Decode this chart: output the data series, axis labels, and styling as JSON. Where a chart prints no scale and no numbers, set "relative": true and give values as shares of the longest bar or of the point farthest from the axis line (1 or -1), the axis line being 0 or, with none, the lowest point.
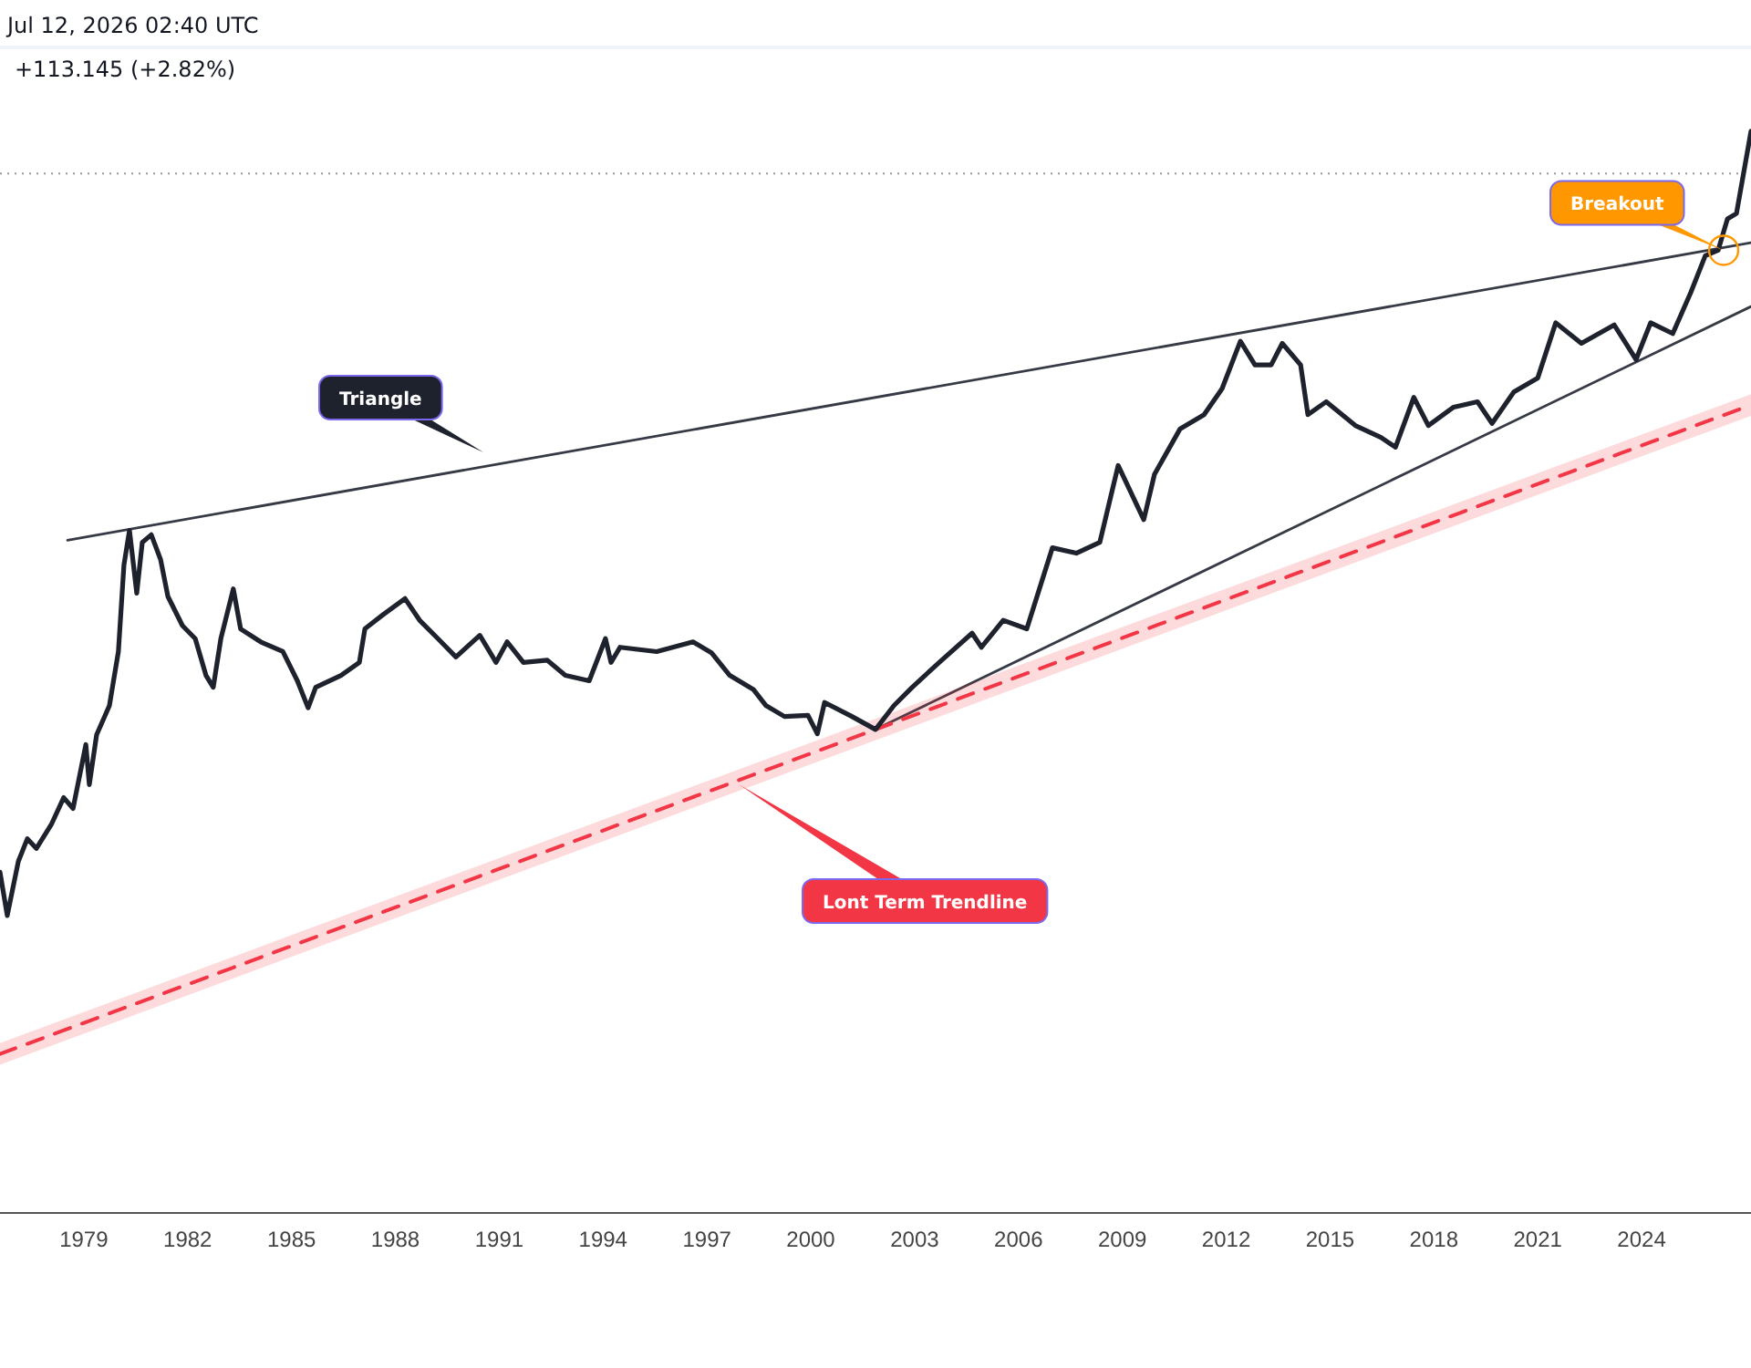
{
  "chart_data": {
    "type": "line",
    "title": "Jul 12, 2026 02:40 UTC",
    "subtitle": "+113.145 (+2.82%)",
    "relative": true,
    "xlim": [
      1976.58,
      2027.16
    ],
    "xticks": [
      1979,
      1982,
      1985,
      1988,
      1991,
      1994,
      1997,
      2000,
      2003,
      2006,
      2009,
      2012,
      2015,
      2018,
      2021,
      2024
    ],
    "grid": false,
    "marker": "none",
    "series": [
      {
        "color": "#1e222d",
        "line_style": "solid",
        "x": [
          1976.58,
          1976.79,
          1977.11,
          1977.37,
          1977.63,
          1978.06,
          1978.42,
          1978.69,
          1979.06,
          1979.16,
          1979.37,
          1979.74,
          1980.0,
          1980.16,
          1980.32,
          1980.53,
          1980.69,
          1980.95,
          1981.22,
          1981.43,
          1981.85,
          1982.22,
          1982.53,
          1982.74,
          1982.96,
          1983.32,
          1983.53,
          1984.11,
          1984.75,
          1985.17,
          1985.48,
          1985.7,
          1986.43,
          1986.96,
          1987.12,
          1987.64,
          1988.28,
          1988.7,
          1989.23,
          1989.75,
          1990.44,
          1990.91,
          1991.23,
          1991.7,
          1992.39,
          1992.91,
          1993.6,
          1994.07,
          1994.23,
          1994.49,
          1995.55,
          1996.6,
          1997.13,
          1997.66,
          1998.34,
          1998.71,
          1999.24,
          1999.92,
          2000.19,
          2000.4,
          2001.19,
          2001.87,
          2002.4,
          2002.93,
          2003.71,
          2004.66,
          2004.93,
          2005.56,
          2006.24,
          2006.98,
          2007.67,
          2008.35,
          2008.88,
          2009.62,
          2009.93,
          2010.67,
          2011.36,
          2011.88,
          2012.41,
          2012.83,
          2013.3,
          2013.62,
          2014.15,
          2014.36,
          2014.89,
          2015.73,
          2016.47,
          2016.89,
          2017.42,
          2017.84,
          2018.57,
          2019.26,
          2019.68,
          2020.31,
          2021.0,
          2021.52,
          2022.26,
          2023.21,
          2023.84,
          2024.26,
          2024.9,
          2025.42,
          2025.84,
          2026.21,
          2026.48,
          2026.74,
          2027.16
        ],
        "values": [
          0.315,
          0.275,
          0.325,
          0.346,
          0.337,
          0.359,
          0.384,
          0.374,
          0.433,
          0.396,
          0.442,
          0.469,
          0.519,
          0.599,
          0.631,
          0.573,
          0.62,
          0.627,
          0.604,
          0.57,
          0.543,
          0.531,
          0.497,
          0.486,
          0.531,
          0.577,
          0.54,
          0.528,
          0.519,
          0.492,
          0.467,
          0.486,
          0.497,
          0.509,
          0.54,
          0.553,
          0.568,
          0.548,
          0.531,
          0.514,
          0.534,
          0.509,
          0.528,
          0.509,
          0.511,
          0.497,
          0.492,
          0.531,
          0.509,
          0.523,
          0.519,
          0.528,
          0.518,
          0.497,
          0.484,
          0.469,
          0.459,
          0.46,
          0.443,
          0.472,
          0.459,
          0.447,
          0.469,
          0.486,
          0.509,
          0.536,
          0.523,
          0.548,
          0.54,
          0.615,
          0.61,
          0.62,
          0.691,
          0.641,
          0.683,
          0.725,
          0.738,
          0.762,
          0.806,
          0.784,
          0.784,
          0.804,
          0.784,
          0.738,
          0.75,
          0.728,
          0.717,
          0.708,
          0.754,
          0.728,
          0.745,
          0.75,
          0.73,
          0.759,
          0.772,
          0.823,
          0.804,
          0.821,
          0.789,
          0.823,
          0.813,
          0.851,
          0.885,
          0.89,
          0.919,
          0.924,
          1.0
        ]
      },
      {
        "color": "#363a45",
        "line_style": "solid",
        "x": [
          1978.53,
          2027.16
        ],
        "values": [
          0.622,
          0.897
        ]
      },
      {
        "color": "#363a45",
        "line_style": "solid",
        "x": [
          2001.87,
          2027.16
        ],
        "values": [
          0.447,
          0.838
        ]
      },
      {
        "color": "#f23645",
        "line_style": "dashed",
        "x": [
          1976.58,
          2027.16
        ],
        "values": [
          0.147,
          0.747
        ],
        "lower": [
          0.137,
          0.737
        ],
        "upper": [
          0.157,
          0.757
        ]
      }
    ],
    "ref_lines": [
      {
        "axis": "y",
        "value": 0.961,
        "color": "#9598a1",
        "line_style": "dotted"
      }
    ],
    "annotations": [
      "Triangle",
      "Lont Term Trendline",
      {
        "text": "Breakout",
        "x": 2026.37,
        "y": 0.89
      }
    ]
  }
}
